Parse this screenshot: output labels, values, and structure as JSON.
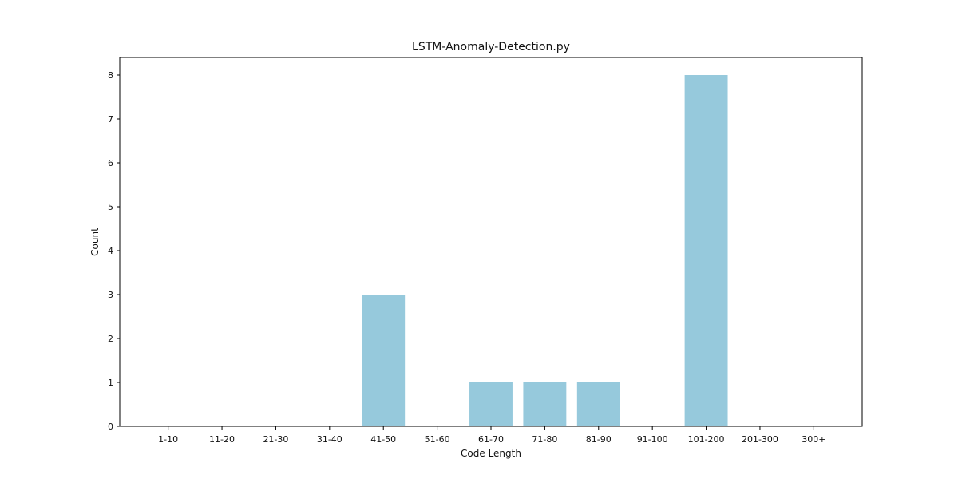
{
  "chart_data": {
    "type": "bar",
    "title": "LSTM-Anomaly-Detection.py",
    "xlabel": "Code Length",
    "ylabel": "Count",
    "categories": [
      "1-10",
      "11-20",
      "21-30",
      "31-40",
      "41-50",
      "51-60",
      "61-70",
      "71-80",
      "81-90",
      "91-100",
      "101-200",
      "201-300",
      "300+"
    ],
    "values": [
      0,
      0,
      0,
      0,
      3,
      0,
      1,
      1,
      1,
      0,
      8,
      0,
      0
    ],
    "ylim": [
      0,
      8.4
    ],
    "yticks": [
      0,
      1,
      2,
      3,
      4,
      5,
      6,
      7,
      8
    ],
    "bar_color": "#96c9dc",
    "grid": false,
    "legend": "none"
  }
}
